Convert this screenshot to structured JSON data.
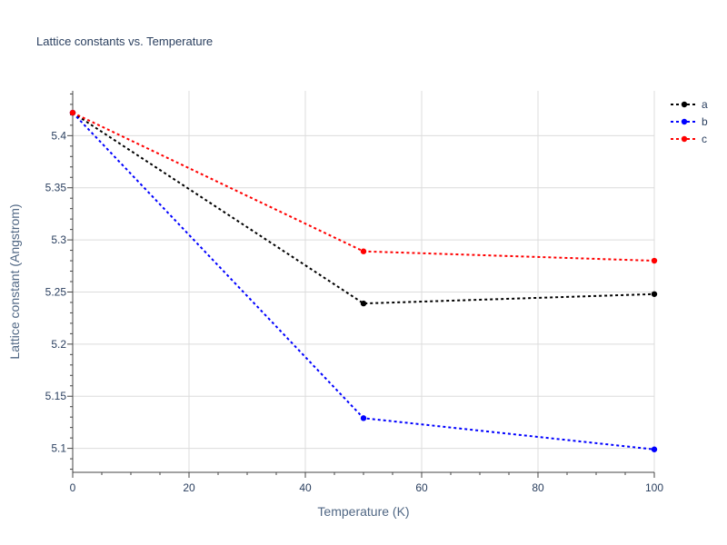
{
  "chart_data": {
    "type": "line",
    "title": "Lattice constants vs. Temperature",
    "xlabel": "Temperature (K)",
    "ylabel": "Lattice constant (Angstrom)",
    "xlim": [
      0,
      100
    ],
    "ylim": [
      5.077,
      5.443
    ],
    "x_ticks": [
      0,
      20,
      40,
      60,
      80,
      100
    ],
    "y_ticks": [
      5.1,
      5.15,
      5.2,
      5.25,
      5.3,
      5.35,
      5.4
    ],
    "grid": true,
    "legend_position": "top-right",
    "series": [
      {
        "name": "a",
        "color": "#000000",
        "x": [
          0,
          50,
          100
        ],
        "y": [
          5.422,
          5.239,
          5.248
        ]
      },
      {
        "name": "b",
        "color": "#0000ff",
        "x": [
          0,
          50,
          100
        ],
        "y": [
          5.422,
          5.129,
          5.099
        ]
      },
      {
        "name": "c",
        "color": "#ff0000",
        "x": [
          0,
          50,
          100
        ],
        "y": [
          5.422,
          5.289,
          5.28
        ]
      }
    ]
  }
}
